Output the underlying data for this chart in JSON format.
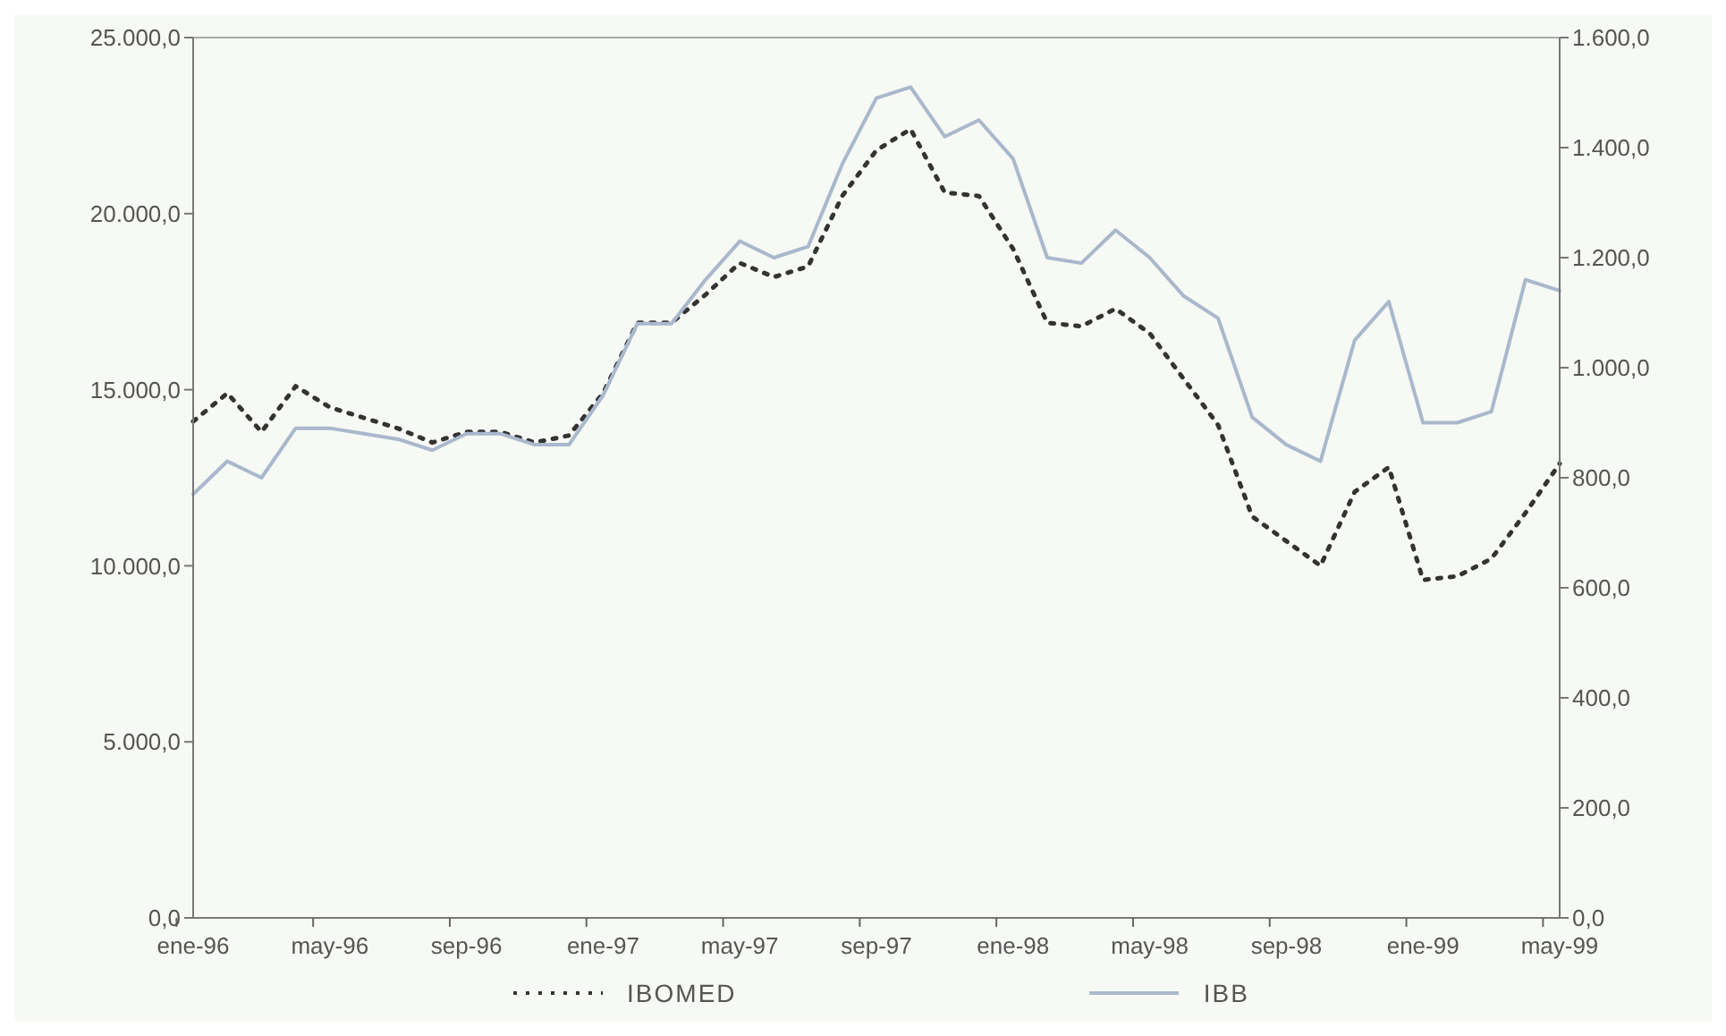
{
  "chart_data": {
    "type": "line",
    "categories": [
      "ene-96",
      null,
      null,
      null,
      "may-96",
      null,
      null,
      null,
      "sep-96",
      null,
      null,
      null,
      "ene-97",
      null,
      null,
      null,
      "may-97",
      null,
      null,
      null,
      "sep-97",
      null,
      null,
      null,
      "ene-98",
      null,
      null,
      null,
      "may-98",
      null,
      null,
      null,
      "sep-98",
      null,
      null,
      null,
      "ene-99",
      null,
      null,
      null,
      "may-99"
    ],
    "series": [
      {
        "name": "IBOMED",
        "color": "#333333",
        "line_style": "dotted",
        "values": [
          14100,
          14900,
          13800,
          15100,
          14500,
          14200,
          13900,
          13500,
          13800,
          13800,
          13500,
          13700,
          14900,
          16900,
          16900,
          17700,
          18600,
          18200,
          18500,
          20500,
          21800,
          22400,
          20600,
          20500,
          19000,
          16900,
          16800,
          17300,
          16600,
          15300,
          14000,
          11400,
          10700,
          10000,
          12100,
          12800,
          9600,
          9700,
          10200,
          11500,
          12900
        ]
      },
      {
        "name": "IBB",
        "color": "#a9b8cc",
        "line_style": "solid",
        "axis": "y2",
        "values": [
          770,
          830,
          800,
          890,
          890,
          880,
          870,
          850,
          880,
          880,
          860,
          860,
          950,
          1080,
          1080,
          1160,
          1230,
          1200,
          1220,
          1370,
          1490,
          1510,
          1420,
          1450,
          1380,
          1200,
          1190,
          1250,
          1200,
          1130,
          1090,
          910,
          860,
          830,
          1050,
          1120,
          900,
          900,
          920,
          1160,
          1140
        ]
      }
    ],
    "ylim": [
      0,
      25000
    ],
    "yticks": [
      {
        "value": 0,
        "label": "0,0"
      },
      {
        "value": 5000,
        "label": "5.000,0"
      },
      {
        "value": 10000,
        "label": "10.000,0"
      },
      {
        "value": 15000,
        "label": "15.000,0"
      },
      {
        "value": 20000,
        "label": "20.000,0"
      },
      {
        "value": 25000,
        "label": "25.000,0"
      }
    ],
    "y2lim": [
      0,
      1600
    ],
    "y2ticks": [
      {
        "value": 0,
        "label": "0,0"
      },
      {
        "value": 200,
        "label": "200,0"
      },
      {
        "value": 400,
        "label": "400,0"
      },
      {
        "value": 600,
        "label": "600,0"
      },
      {
        "value": 800,
        "label": "800,0"
      },
      {
        "value": 1000,
        "label": "1.000,0"
      },
      {
        "value": 1200,
        "label": "1.200,0"
      },
      {
        "value": 1400,
        "label": "1.400,0"
      },
      {
        "value": 1600,
        "label": "1.600,0"
      }
    ],
    "grid": false,
    "legend": "bottom",
    "marker": "none"
  }
}
